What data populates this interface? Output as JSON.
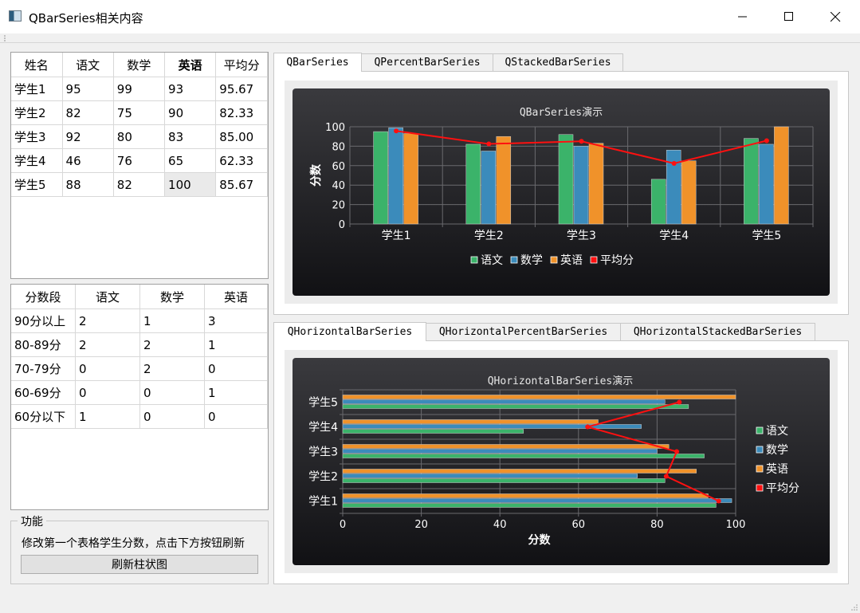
{
  "window": {
    "title": "QBarSeries相关内容"
  },
  "score_table": {
    "headers": [
      "姓名",
      "语文",
      "数学",
      "英语",
      "平均分"
    ],
    "rows": [
      [
        "学生1",
        "95",
        "99",
        "93",
        "95.67"
      ],
      [
        "学生2",
        "82",
        "75",
        "90",
        "82.33"
      ],
      [
        "学生3",
        "92",
        "80",
        "83",
        "85.00"
      ],
      [
        "学生4",
        "46",
        "76",
        "65",
        "62.33"
      ],
      [
        "学生5",
        "88",
        "82",
        "100",
        "85.67"
      ]
    ]
  },
  "range_table": {
    "headers": [
      "分数段",
      "语文",
      "数学",
      "英语"
    ],
    "rows": [
      [
        "90分以上",
        "2",
        "1",
        "3"
      ],
      [
        "80-89分",
        "2",
        "2",
        "1"
      ],
      [
        "70-79分",
        "0",
        "2",
        "0"
      ],
      [
        "60-69分",
        "0",
        "0",
        "1"
      ],
      [
        "60分以下",
        "1",
        "0",
        "0"
      ]
    ]
  },
  "function_group": {
    "title": "功能",
    "description": "修改第一个表格学生分数，点击下方按钮刷新",
    "button": "刷新柱状图"
  },
  "top_tabs": [
    "QBarSeries",
    "QPercentBarSeries",
    "QStackedBarSeries"
  ],
  "bottom_tabs": [
    "QHorizontalBarSeries",
    "QHorizontalPercentBarSeries",
    "QHorizontalStackedBarSeries"
  ],
  "colors": {
    "语文": "#3bb36a",
    "数学": "#3b8bbb",
    "英语": "#f0922a",
    "平均分": "#ff1010",
    "chart_bg_top": "#3a3a3e",
    "chart_bg_bottom": "#111114"
  },
  "chart_data": [
    {
      "type": "bar",
      "title": "QBarSeries演示",
      "categories": [
        "学生1",
        "学生2",
        "学生3",
        "学生4",
        "学生5"
      ],
      "series": [
        {
          "name": "语文",
          "values": [
            95,
            82,
            92,
            46,
            88
          ]
        },
        {
          "name": "数学",
          "values": [
            99,
            75,
            80,
            76,
            82
          ]
        },
        {
          "name": "英语",
          "values": [
            93,
            90,
            83,
            65,
            100
          ]
        }
      ],
      "line_series": {
        "name": "平均分",
        "values": [
          95.67,
          82.33,
          85.0,
          62.33,
          85.67
        ]
      },
      "xlabel": "",
      "ylabel": "分数",
      "ylim": [
        0,
        100
      ],
      "yticks": [
        0,
        20,
        40,
        60,
        80,
        100
      ],
      "legend": "bottom"
    },
    {
      "type": "bar",
      "orientation": "horizontal",
      "title": "QHorizontalBarSeries演示",
      "categories": [
        "学生1",
        "学生2",
        "学生3",
        "学生4",
        "学生5"
      ],
      "series": [
        {
          "name": "语文",
          "values": [
            95,
            82,
            92,
            46,
            88
          ]
        },
        {
          "name": "数学",
          "values": [
            99,
            75,
            80,
            76,
            82
          ]
        },
        {
          "name": "英语",
          "values": [
            93,
            90,
            83,
            65,
            100
          ]
        }
      ],
      "line_series": {
        "name": "平均分",
        "values": [
          95.67,
          82.33,
          85.0,
          62.33,
          85.67
        ]
      },
      "xlabel": "分数",
      "ylabel": "",
      "xlim": [
        0,
        100
      ],
      "xticks": [
        0,
        20,
        40,
        60,
        80,
        100
      ],
      "legend": "right"
    }
  ]
}
